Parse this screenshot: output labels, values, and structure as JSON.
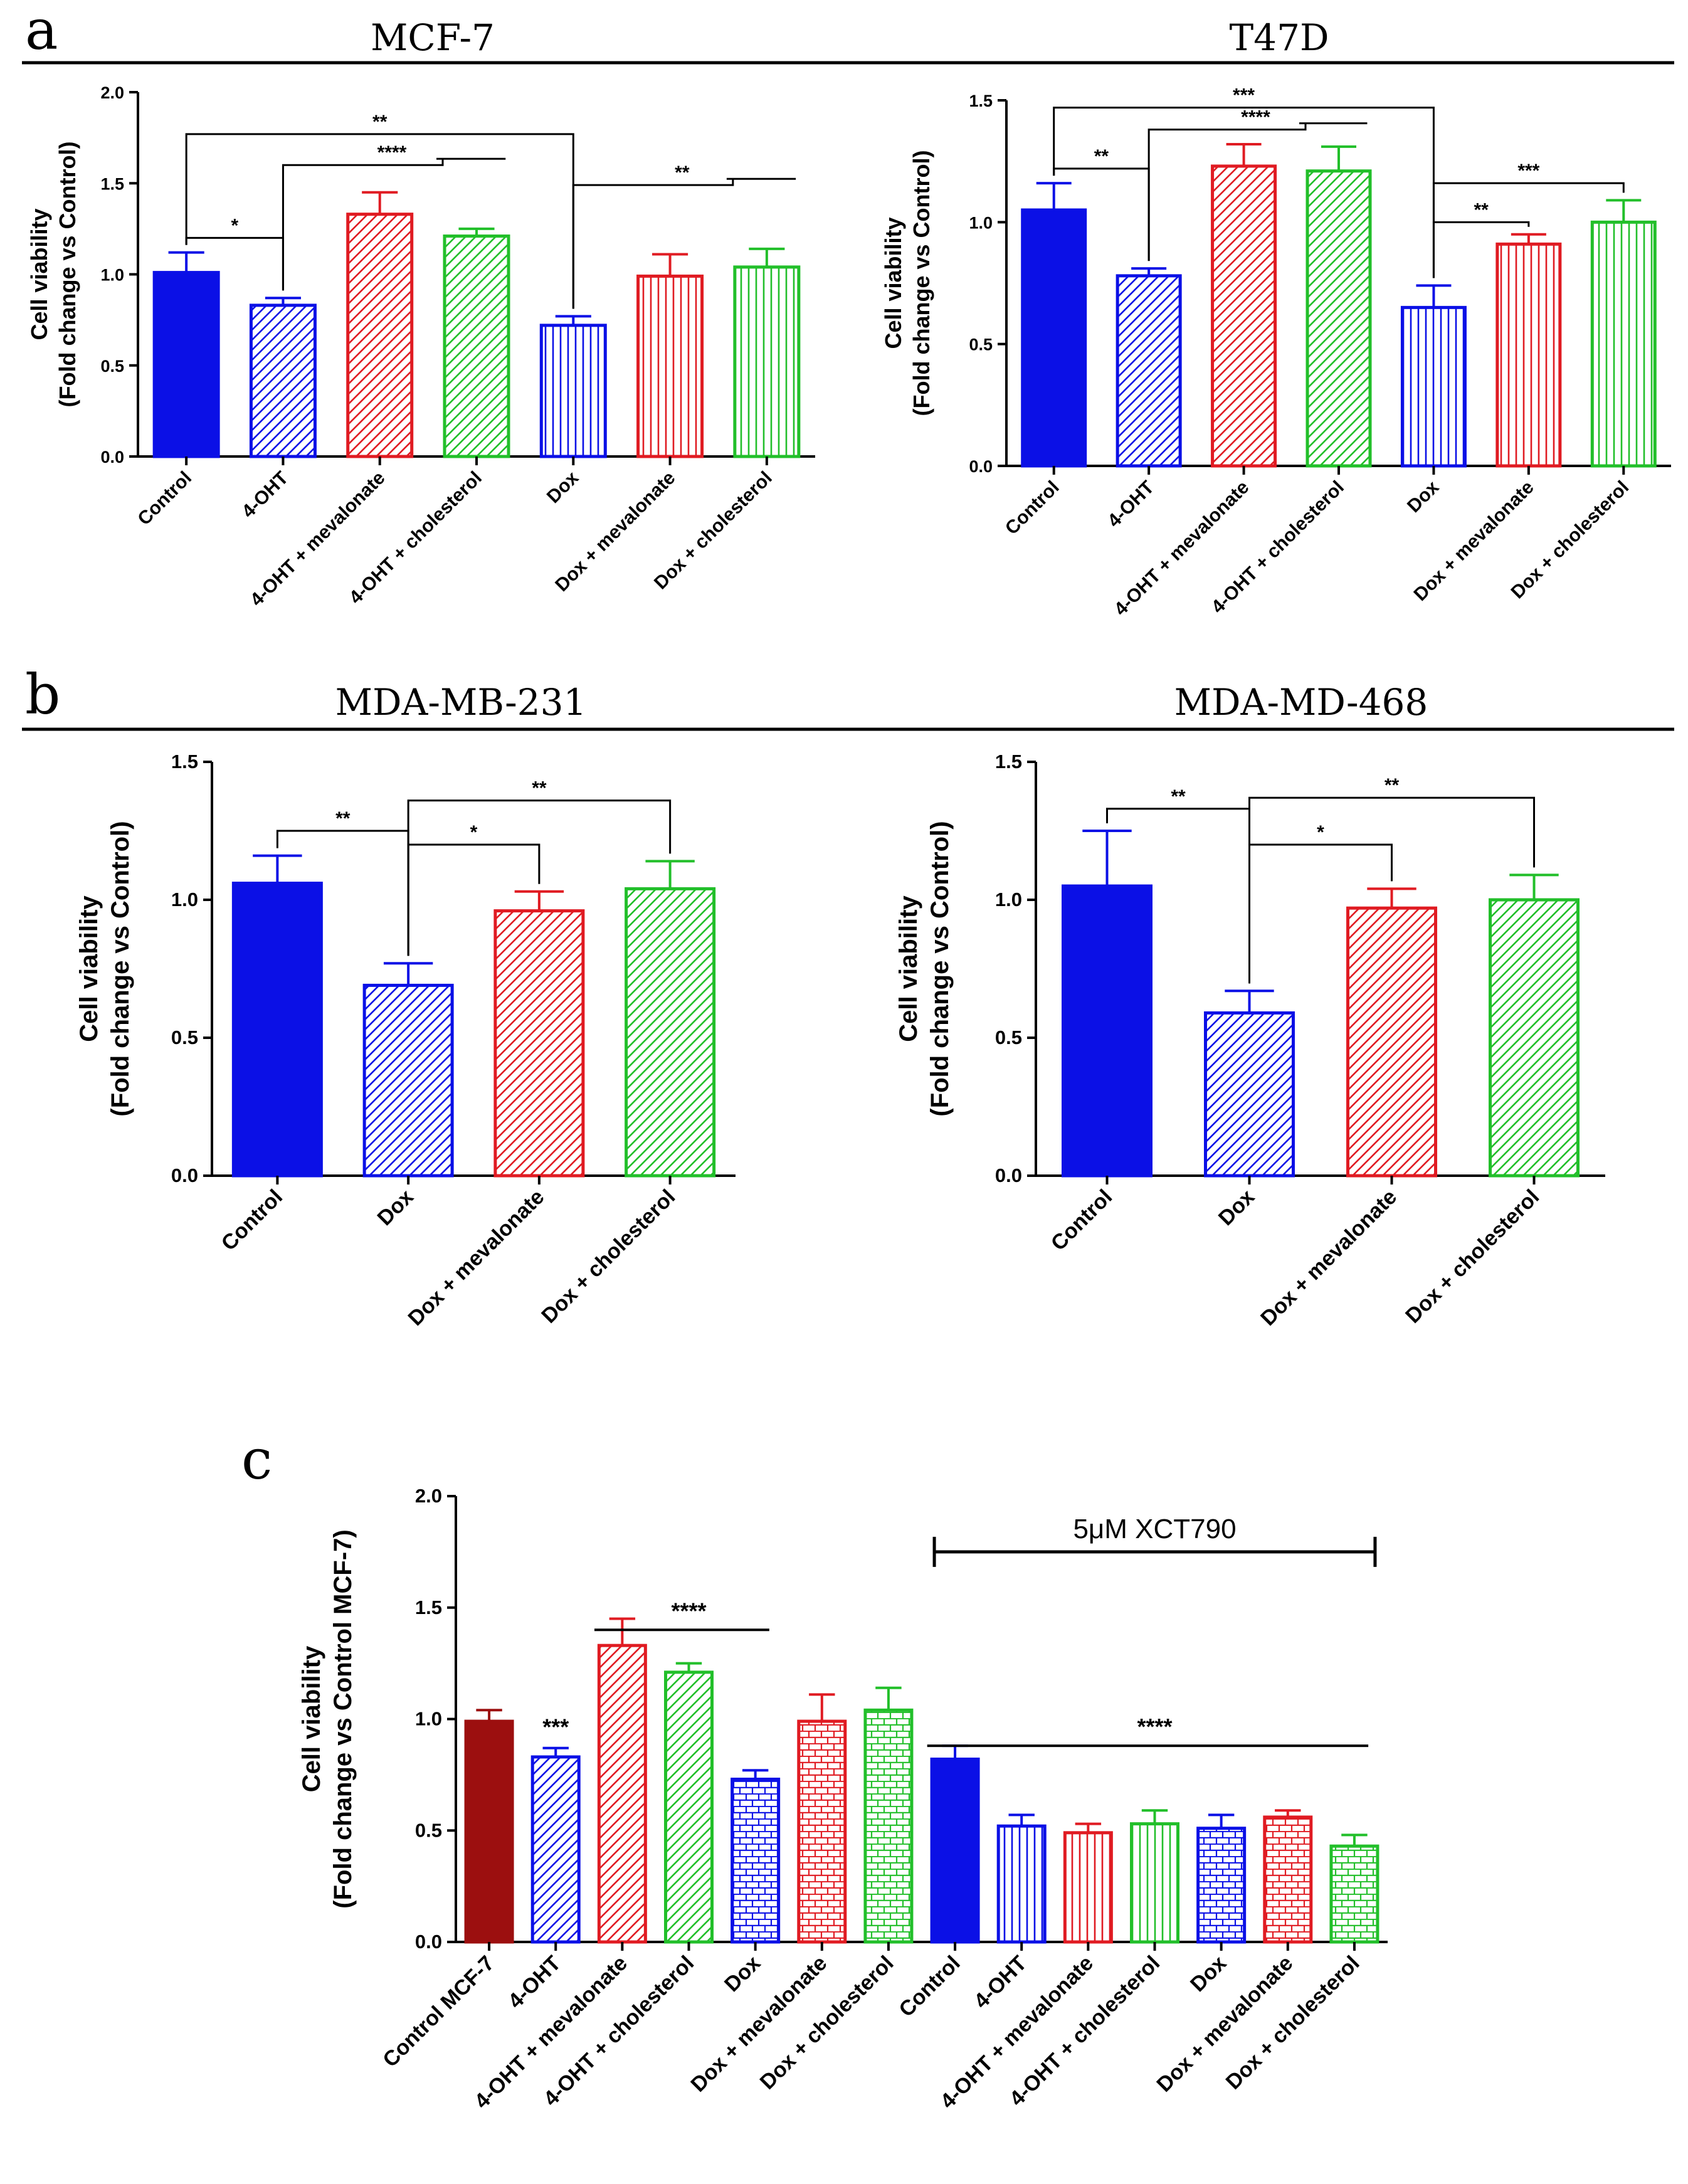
{
  "panel_letters": {
    "a": "a",
    "b": "b",
    "c": "c"
  },
  "colors": {
    "blue": "#0b10e6",
    "red": "#e01b22",
    "green": "#22bf2a",
    "darkred": "#9c0f0f"
  },
  "chart_data": [
    {
      "id": "mcf7",
      "type": "bar",
      "title": "MCF-7",
      "ylabel_line1": "Cell viability",
      "ylabel_line2": "(Fold change vs Control)",
      "ylim": [
        0,
        2.0
      ],
      "yticks": [
        "0.0",
        "0.5",
        "1.0",
        "1.5",
        "2.0"
      ],
      "categories": [
        "Control",
        "4-OHT",
        "4-OHT + mevalonate",
        "4-OHT + cholesterol",
        "Dox",
        "Dox + mevalonate",
        "Dox + cholesterol"
      ],
      "values": [
        1.01,
        0.83,
        1.33,
        1.21,
        0.72,
        0.99,
        1.04
      ],
      "errors": [
        0.11,
        0.04,
        0.12,
        0.04,
        0.05,
        0.12,
        0.1
      ],
      "colors": [
        "blue",
        "blue",
        "red",
        "green",
        "blue",
        "red",
        "green"
      ],
      "patterns": [
        "solid",
        "diag",
        "diag",
        "diag",
        "vert",
        "vert",
        "vert"
      ],
      "annotations": [
        {
          "label": "*",
          "kind": "pair",
          "from": 0,
          "to": 1,
          "y": 1.2
        },
        {
          "label": "**",
          "kind": "pair",
          "from": 0,
          "to": 4,
          "y": 1.77
        },
        {
          "label": "****",
          "kind": "group",
          "from": 1,
          "to": [
            2,
            3
          ],
          "y": 1.6
        },
        {
          "label": "**",
          "kind": "group",
          "from": 4,
          "to": [
            5,
            6
          ],
          "y": 1.49
        }
      ]
    },
    {
      "id": "t47d",
      "type": "bar",
      "title": "T47D",
      "ylabel_line1": "Cell viability",
      "ylabel_line2": "(Fold change vs Control)",
      "ylim": [
        0,
        1.5
      ],
      "yticks": [
        "0.0",
        "0.5",
        "1.0",
        "1.5"
      ],
      "categories": [
        "Control",
        "4-OHT",
        "4-OHT + mevalonate",
        "4-OHT + cholesterol",
        "Dox",
        "Dox + mevalonate",
        "Dox + cholesterol"
      ],
      "values": [
        1.05,
        0.78,
        1.23,
        1.21,
        0.65,
        0.91,
        1.0
      ],
      "errors": [
        0.11,
        0.03,
        0.09,
        0.1,
        0.09,
        0.04,
        0.09
      ],
      "colors": [
        "blue",
        "blue",
        "red",
        "green",
        "blue",
        "red",
        "green"
      ],
      "patterns": [
        "solid",
        "diag",
        "diag",
        "diag",
        "vert",
        "vert",
        "vert"
      ],
      "annotations": [
        {
          "label": "**",
          "kind": "pair",
          "from": 0,
          "to": 1,
          "y": 1.22
        },
        {
          "label": "***",
          "kind": "pair",
          "from": 0,
          "to": 4,
          "y": 1.47
        },
        {
          "label": "****",
          "kind": "group",
          "from": 1,
          "to": [
            2,
            3
          ],
          "y": 1.38
        },
        {
          "label": "**",
          "kind": "pair",
          "from": 4,
          "to": 5,
          "y": 1.0
        },
        {
          "label": "***",
          "kind": "pair",
          "from": 4,
          "to": 6,
          "y": 1.16
        }
      ]
    },
    {
      "id": "mdamb231",
      "type": "bar",
      "title": "MDA-MB-231",
      "ylabel_line1": "Cell viability",
      "ylabel_line2": "(Fold change vs Control)",
      "ylim": [
        0,
        1.5
      ],
      "yticks": [
        "0.0",
        "0.5",
        "1.0",
        "1.5"
      ],
      "categories": [
        "Control",
        "Dox",
        "Dox + mevalonate",
        "Dox + cholesterol"
      ],
      "values": [
        1.06,
        0.69,
        0.96,
        1.04
      ],
      "errors": [
        0.1,
        0.08,
        0.07,
        0.1
      ],
      "colors": [
        "blue",
        "blue",
        "red",
        "green"
      ],
      "patterns": [
        "solid",
        "diag",
        "diag",
        "diag"
      ],
      "annotations": [
        {
          "label": "**",
          "kind": "pair",
          "from": 0,
          "to": 1,
          "y": 1.25
        },
        {
          "label": "*",
          "kind": "pair",
          "from": 1,
          "to": 2,
          "y": 1.2
        },
        {
          "label": "**",
          "kind": "pair",
          "from": 1,
          "to": 3,
          "y": 1.36
        }
      ]
    },
    {
      "id": "mdamd468",
      "type": "bar",
      "title": "MDA-MD-468",
      "ylabel_line1": "Cell viability",
      "ylabel_line2": "(Fold change vs Control)",
      "ylim": [
        0,
        1.5
      ],
      "yticks": [
        "0.0",
        "0.5",
        "1.0",
        "1.5"
      ],
      "categories": [
        "Control",
        "Dox",
        "Dox + mevalonate",
        "Dox + cholesterol"
      ],
      "values": [
        1.05,
        0.59,
        0.97,
        1.0
      ],
      "errors": [
        0.2,
        0.08,
        0.07,
        0.09
      ],
      "colors": [
        "blue",
        "blue",
        "red",
        "green"
      ],
      "patterns": [
        "solid",
        "diag",
        "diag",
        "diag"
      ],
      "annotations": [
        {
          "label": "**",
          "kind": "pair",
          "from": 0,
          "to": 1,
          "y": 1.33
        },
        {
          "label": "*",
          "kind": "pair",
          "from": 1,
          "to": 2,
          "y": 1.2
        },
        {
          "label": "**",
          "kind": "pair",
          "from": 1,
          "to": 3,
          "y": 1.37
        }
      ]
    },
    {
      "id": "xct790",
      "type": "bar",
      "title": "",
      "ylabel_line1": "Cell viability",
      "ylabel_line2": "(Fold change vs Control MCF-7)",
      "ylim": [
        0,
        2.0
      ],
      "yticks": [
        "0.0",
        "0.5",
        "1.0",
        "1.5",
        "2.0"
      ],
      "categories": [
        "Control MCF-7",
        "4-OHT",
        "4-OHT + mevalonate",
        "4-OHT + cholesterol",
        "Dox",
        "Dox + mevalonate",
        "Dox + cholesterol",
        "Control",
        "4-OHT",
        "4-OHT + mevalonate",
        "4-OHT + cholesterol",
        "Dox",
        "Dox + mevalonate",
        "Dox + cholesterol"
      ],
      "values": [
        0.99,
        0.83,
        1.33,
        1.21,
        0.73,
        0.99,
        1.04,
        0.82,
        0.52,
        0.49,
        0.53,
        0.51,
        0.56,
        0.43
      ],
      "errors": [
        0.05,
        0.04,
        0.12,
        0.04,
        0.04,
        0.12,
        0.1,
        0.06,
        0.05,
        0.04,
        0.06,
        0.06,
        0.03,
        0.05
      ],
      "colors": [
        "darkred",
        "blue",
        "red",
        "green",
        "blue",
        "red",
        "green",
        "blue",
        "blue",
        "red",
        "green",
        "blue",
        "red",
        "green"
      ],
      "patterns": [
        "solid",
        "diag",
        "diag",
        "diag",
        "brick",
        "brick",
        "brick",
        "solid",
        "vert",
        "vert",
        "vert",
        "brick",
        "brick",
        "brick"
      ],
      "annotations": [
        {
          "label": "***",
          "kind": "text",
          "at": 1,
          "y": 0.93
        },
        {
          "label": "****",
          "kind": "line",
          "from": 2,
          "to": 4,
          "y": 1.4
        },
        {
          "label": "****",
          "kind": "line",
          "from": 7,
          "to": 13,
          "y": 0.88
        }
      ],
      "bracket": {
        "label": "5μM XCT790",
        "from": 7,
        "to": 13,
        "y": 1.75
      }
    }
  ]
}
